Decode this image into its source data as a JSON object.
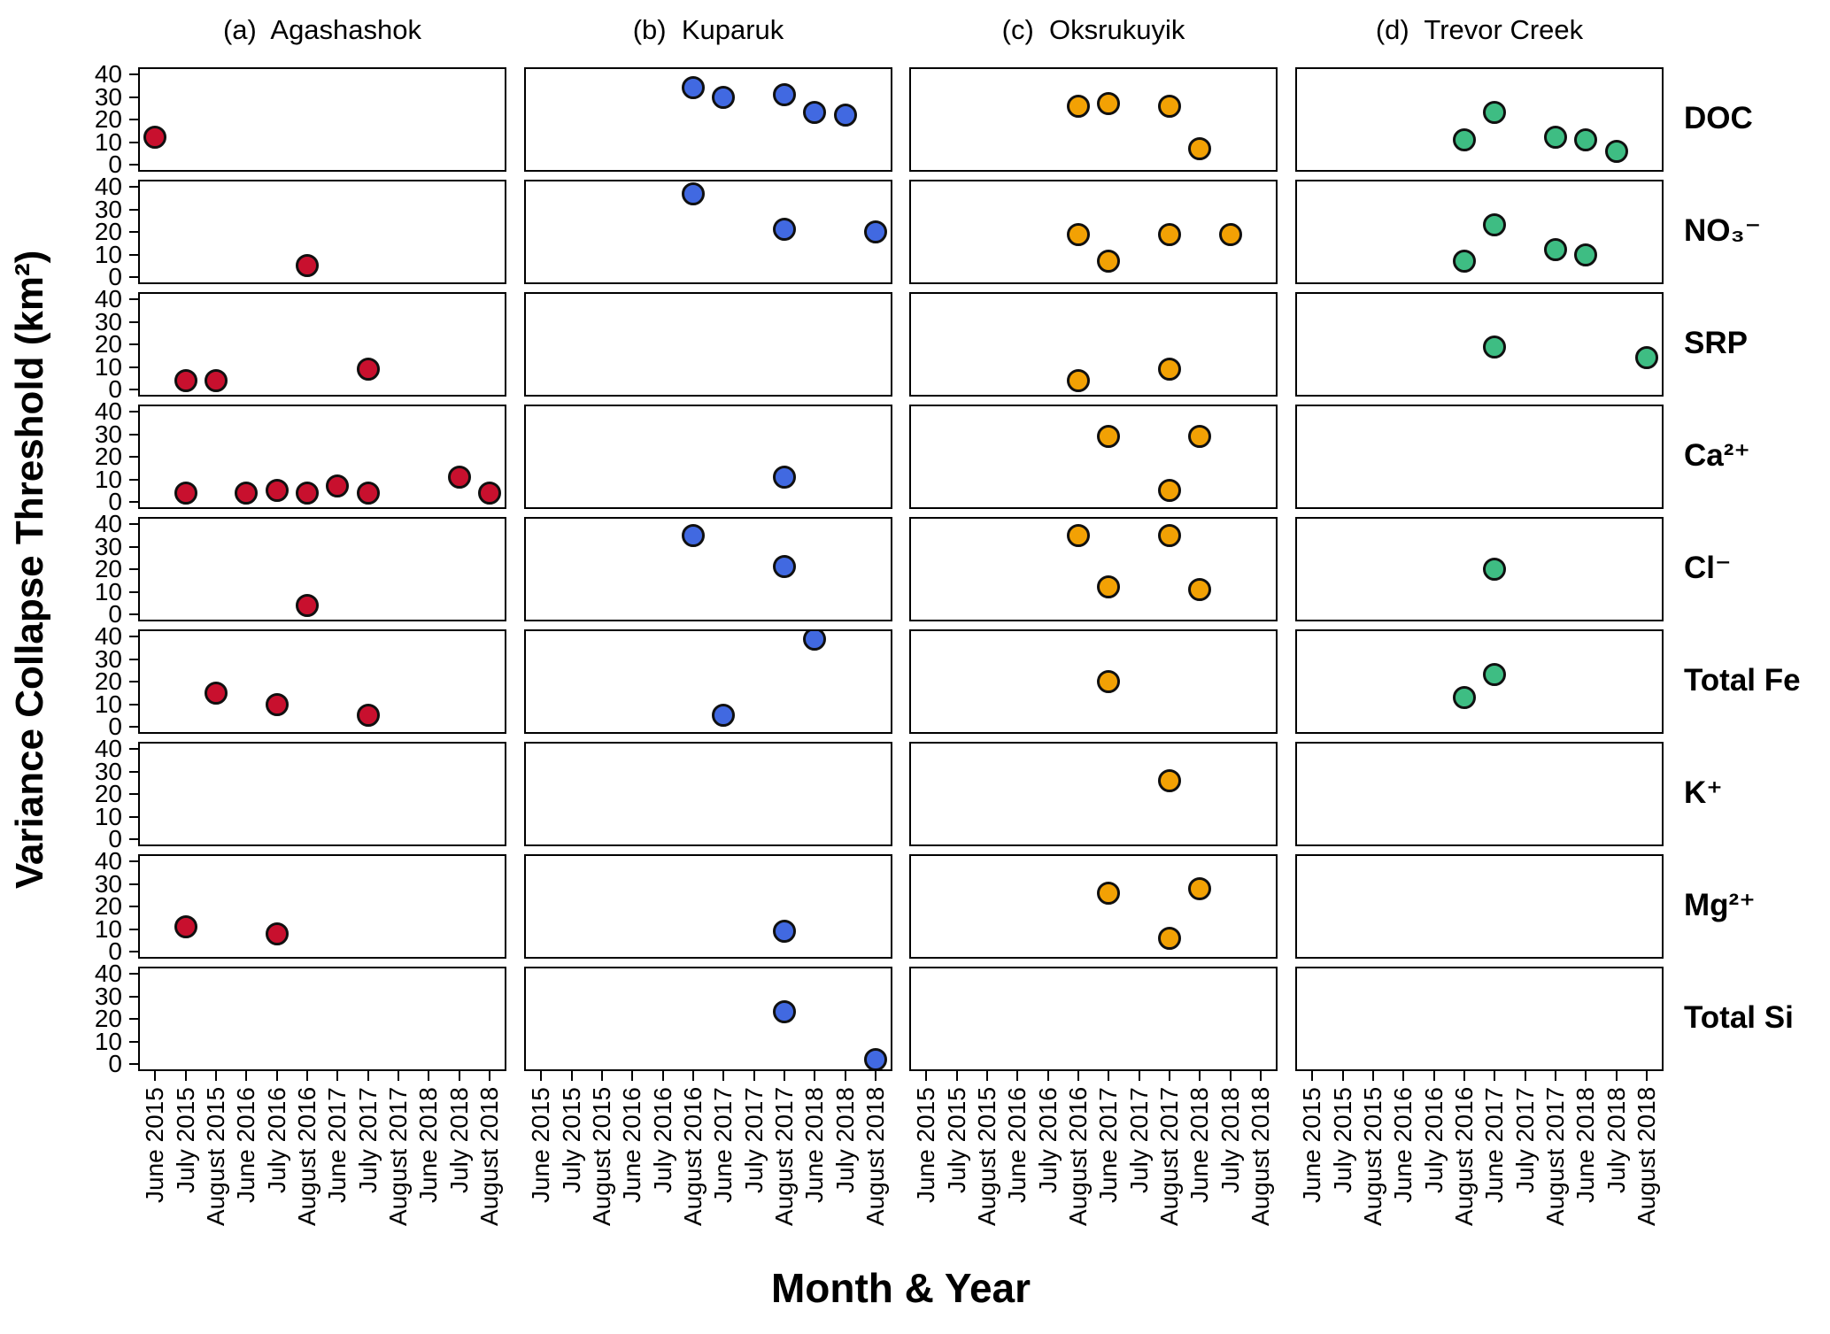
{
  "figure": {
    "y_axis_title": "Variance Collapse Threshold (km²)",
    "x_axis_title": "Month & Year"
  },
  "chart_data": {
    "type": "scatter",
    "facet": "grid",
    "grid": "off",
    "legend": "none",
    "ylim": [
      0,
      40
    ],
    "y_ticks": [
      0,
      10,
      20,
      30,
      40
    ],
    "x_categories": [
      "June 2015",
      "July 2015",
      "August 2015",
      "June 2016",
      "July 2016",
      "August 2016",
      "June 2017",
      "July 2017",
      "August 2017",
      "June 2018",
      "July 2018",
      "August 2018"
    ],
    "columns": [
      {
        "id": "agashashok",
        "header": "(a)  Agashashok",
        "color": "#C8102E"
      },
      {
        "id": "kuparuk",
        "header": "(b)  Kuparuk",
        "color": "#4169E1"
      },
      {
        "id": "oksrukuyik",
        "header": "(c)  Oksrukuyik",
        "color": "#F2A104"
      },
      {
        "id": "trevor",
        "header": "(d)  Trevor Creek",
        "color": "#3EBD83"
      }
    ],
    "rows": [
      {
        "id": "doc",
        "label": "DOC"
      },
      {
        "id": "no3",
        "label": "NO₃⁻"
      },
      {
        "id": "srp",
        "label": "SRP"
      },
      {
        "id": "ca",
        "label": "Ca²⁺"
      },
      {
        "id": "cl",
        "label": "Cl⁻"
      },
      {
        "id": "fe",
        "label": "Total Fe"
      },
      {
        "id": "k",
        "label": "K⁺"
      },
      {
        "id": "mg",
        "label": "Mg²⁺"
      },
      {
        "id": "si",
        "label": "Total Si"
      }
    ],
    "points": [
      {
        "row": "doc",
        "col": "agashashok",
        "month": "June 2015",
        "value": 12
      },
      {
        "row": "doc",
        "col": "kuparuk",
        "month": "August 2016",
        "value": 34
      },
      {
        "row": "doc",
        "col": "kuparuk",
        "month": "June 2017",
        "value": 30
      },
      {
        "row": "doc",
        "col": "kuparuk",
        "month": "August 2017",
        "value": 31
      },
      {
        "row": "doc",
        "col": "kuparuk",
        "month": "June 2018",
        "value": 23
      },
      {
        "row": "doc",
        "col": "kuparuk",
        "month": "July 2018",
        "value": 22
      },
      {
        "row": "doc",
        "col": "oksrukuyik",
        "month": "August 2016",
        "value": 26
      },
      {
        "row": "doc",
        "col": "oksrukuyik",
        "month": "June 2017",
        "value": 27
      },
      {
        "row": "doc",
        "col": "oksrukuyik",
        "month": "August 2017",
        "value": 26
      },
      {
        "row": "doc",
        "col": "oksrukuyik",
        "month": "June 2018",
        "value": 7
      },
      {
        "row": "doc",
        "col": "trevor",
        "month": "August 2016",
        "value": 11
      },
      {
        "row": "doc",
        "col": "trevor",
        "month": "June 2017",
        "value": 23
      },
      {
        "row": "doc",
        "col": "trevor",
        "month": "August 2017",
        "value": 12
      },
      {
        "row": "doc",
        "col": "trevor",
        "month": "June 2018",
        "value": 11
      },
      {
        "row": "doc",
        "col": "trevor",
        "month": "July 2018",
        "value": 6
      },
      {
        "row": "no3",
        "col": "agashashok",
        "month": "August 2016",
        "value": 5
      },
      {
        "row": "no3",
        "col": "kuparuk",
        "month": "August 2016",
        "value": 37
      },
      {
        "row": "no3",
        "col": "kuparuk",
        "month": "August 2017",
        "value": 21
      },
      {
        "row": "no3",
        "col": "kuparuk",
        "month": "August 2018",
        "value": 20
      },
      {
        "row": "no3",
        "col": "oksrukuyik",
        "month": "August 2016",
        "value": 19
      },
      {
        "row": "no3",
        "col": "oksrukuyik",
        "month": "June 2017",
        "value": 7
      },
      {
        "row": "no3",
        "col": "oksrukuyik",
        "month": "August 2017",
        "value": 19
      },
      {
        "row": "no3",
        "col": "oksrukuyik",
        "month": "July 2018",
        "value": 19
      },
      {
        "row": "no3",
        "col": "trevor",
        "month": "August 2016",
        "value": 7
      },
      {
        "row": "no3",
        "col": "trevor",
        "month": "June 2017",
        "value": 23
      },
      {
        "row": "no3",
        "col": "trevor",
        "month": "August 2017",
        "value": 12
      },
      {
        "row": "no3",
        "col": "trevor",
        "month": "June 2018",
        "value": 10
      },
      {
        "row": "srp",
        "col": "agashashok",
        "month": "July 2015",
        "value": 4
      },
      {
        "row": "srp",
        "col": "agashashok",
        "month": "August 2015",
        "value": 4
      },
      {
        "row": "srp",
        "col": "agashashok",
        "month": "July 2017",
        "value": 9
      },
      {
        "row": "srp",
        "col": "oksrukuyik",
        "month": "August 2016",
        "value": 4
      },
      {
        "row": "srp",
        "col": "oksrukuyik",
        "month": "August 2017",
        "value": 9
      },
      {
        "row": "srp",
        "col": "trevor",
        "month": "June 2017",
        "value": 19
      },
      {
        "row": "srp",
        "col": "trevor",
        "month": "August 2018",
        "value": 14
      },
      {
        "row": "ca",
        "col": "agashashok",
        "month": "July 2015",
        "value": 4
      },
      {
        "row": "ca",
        "col": "agashashok",
        "month": "June 2016",
        "value": 4
      },
      {
        "row": "ca",
        "col": "agashashok",
        "month": "July 2016",
        "value": 5
      },
      {
        "row": "ca",
        "col": "agashashok",
        "month": "August 2016",
        "value": 4
      },
      {
        "row": "ca",
        "col": "agashashok",
        "month": "June 2017",
        "value": 7
      },
      {
        "row": "ca",
        "col": "agashashok",
        "month": "July 2017",
        "value": 4
      },
      {
        "row": "ca",
        "col": "agashashok",
        "month": "July 2018",
        "value": 11
      },
      {
        "row": "ca",
        "col": "agashashok",
        "month": "August 2018",
        "value": 4
      },
      {
        "row": "ca",
        "col": "kuparuk",
        "month": "August 2017",
        "value": 11
      },
      {
        "row": "ca",
        "col": "oksrukuyik",
        "month": "June 2017",
        "value": 29
      },
      {
        "row": "ca",
        "col": "oksrukuyik",
        "month": "August 2017",
        "value": 5
      },
      {
        "row": "ca",
        "col": "oksrukuyik",
        "month": "June 2018",
        "value": 29
      },
      {
        "row": "cl",
        "col": "agashashok",
        "month": "August 2016",
        "value": 4
      },
      {
        "row": "cl",
        "col": "kuparuk",
        "month": "August 2016",
        "value": 35
      },
      {
        "row": "cl",
        "col": "kuparuk",
        "month": "August 2017",
        "value": 21
      },
      {
        "row": "cl",
        "col": "oksrukuyik",
        "month": "August 2016",
        "value": 35
      },
      {
        "row": "cl",
        "col": "oksrukuyik",
        "month": "June 2017",
        "value": 12
      },
      {
        "row": "cl",
        "col": "oksrukuyik",
        "month": "August 2017",
        "value": 35
      },
      {
        "row": "cl",
        "col": "oksrukuyik",
        "month": "June 2018",
        "value": 11
      },
      {
        "row": "cl",
        "col": "trevor",
        "month": "June 2017",
        "value": 20
      },
      {
        "row": "fe",
        "col": "agashashok",
        "month": "August 2015",
        "value": 15
      },
      {
        "row": "fe",
        "col": "agashashok",
        "month": "July 2016",
        "value": 10
      },
      {
        "row": "fe",
        "col": "agashashok",
        "month": "July 2017",
        "value": 5
      },
      {
        "row": "fe",
        "col": "kuparuk",
        "month": "June 2017",
        "value": 5
      },
      {
        "row": "fe",
        "col": "kuparuk",
        "month": "June 2018",
        "value": 39
      },
      {
        "row": "fe",
        "col": "oksrukuyik",
        "month": "June 2017",
        "value": 20
      },
      {
        "row": "fe",
        "col": "trevor",
        "month": "August 2016",
        "value": 13
      },
      {
        "row": "fe",
        "col": "trevor",
        "month": "June 2017",
        "value": 23
      },
      {
        "row": "k",
        "col": "oksrukuyik",
        "month": "August 2017",
        "value": 26
      },
      {
        "row": "mg",
        "col": "agashashok",
        "month": "July 2015",
        "value": 11
      },
      {
        "row": "mg",
        "col": "agashashok",
        "month": "July 2016",
        "value": 8
      },
      {
        "row": "mg",
        "col": "kuparuk",
        "month": "August 2017",
        "value": 9
      },
      {
        "row": "mg",
        "col": "oksrukuyik",
        "month": "June 2017",
        "value": 26
      },
      {
        "row": "mg",
        "col": "oksrukuyik",
        "month": "August 2017",
        "value": 6
      },
      {
        "row": "mg",
        "col": "oksrukuyik",
        "month": "June 2018",
        "value": 28
      },
      {
        "row": "si",
        "col": "kuparuk",
        "month": "August 2017",
        "value": 23
      },
      {
        "row": "si",
        "col": "kuparuk",
        "month": "August 2018",
        "value": 2
      }
    ]
  }
}
